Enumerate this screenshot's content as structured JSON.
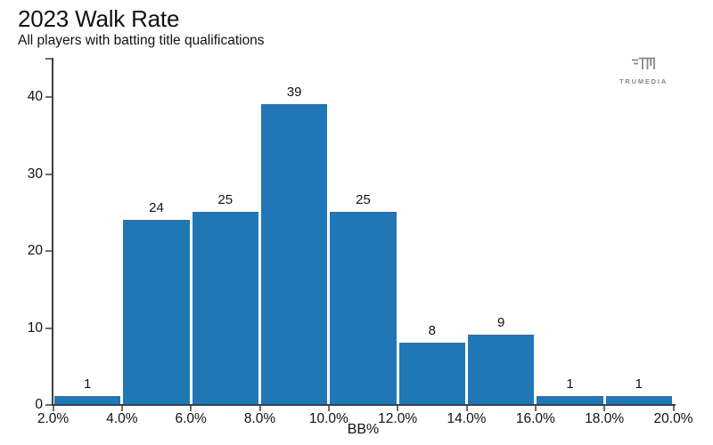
{
  "header": {
    "title": "2023 Walk Rate",
    "subtitle": "All players with batting title qualifications"
  },
  "branding": {
    "logo_text": "TRUMEDIA"
  },
  "colors": {
    "bar": "#2177b5",
    "axis": "#3f3f3f",
    "tick": "#6e6e6e",
    "text": "#111111",
    "logo": "#85898c",
    "background": "#ffffff"
  },
  "chart_data": {
    "type": "bar",
    "subtype": "histogram",
    "title": "2023 Walk Rate",
    "subtitle": "All players with batting title qualifications",
    "xlabel": "BB%",
    "ylabel": "",
    "categories": [
      "2.0-4.0%",
      "4.0-6.0%",
      "6.0-8.0%",
      "8.0-10.0%",
      "10.0-12.0%",
      "12.0-14.0%",
      "14.0-16.0%",
      "16.0-18.0%",
      "18.0-20.0%"
    ],
    "values": [
      1,
      24,
      25,
      39,
      25,
      8,
      9,
      1,
      1
    ],
    "bin_edges_pct": [
      2.0,
      4.0,
      6.0,
      8.0,
      10.0,
      12.0,
      14.0,
      16.0,
      18.0,
      20.0
    ],
    "x_tick_labels": [
      "2.0%",
      "4.0%",
      "6.0%",
      "8.0%",
      "10.0%",
      "12.0%",
      "14.0%",
      "16.0%",
      "18.0%",
      "20.0%"
    ],
    "y_ticks": [
      0,
      10,
      20,
      30,
      40
    ],
    "ylim": [
      0,
      45
    ],
    "grid": false,
    "legend": "none",
    "bar_color": "#2177b5"
  }
}
